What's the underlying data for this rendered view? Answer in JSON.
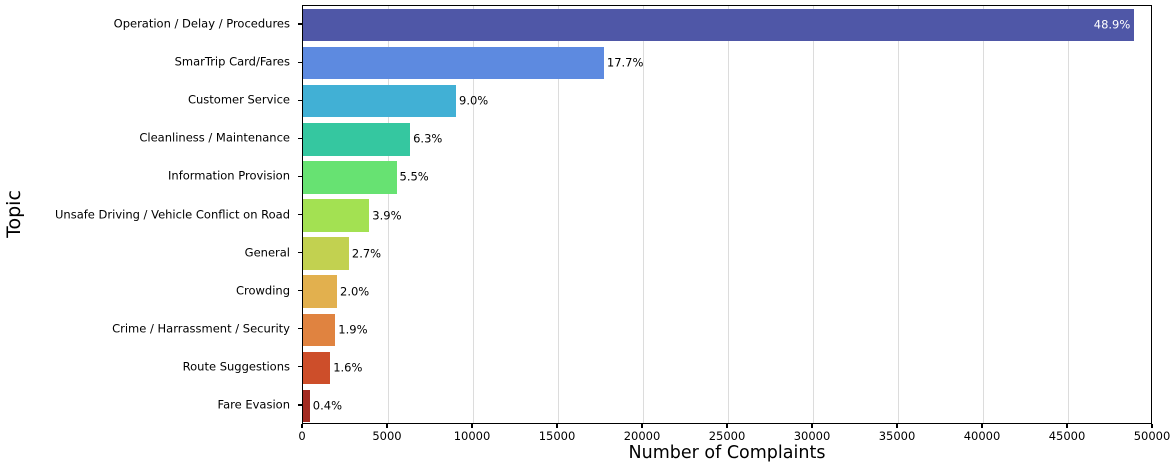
{
  "figure": {
    "background": "#ffffff",
    "spine_color": "#000000",
    "grid_color": "#dcdcdc",
    "text_color": "#000000"
  },
  "chart_data": {
    "type": "bar",
    "orientation": "horizontal",
    "title": "",
    "xlabel": "Number of Complaints",
    "ylabel": "Topic",
    "xlim": [
      0,
      50000
    ],
    "grid": "vertical",
    "legend": "none",
    "categories": [
      "Operation / Delay / Procedures",
      "SmarTrip Card/Fares",
      "Customer Service",
      "Cleanliness / Maintenance",
      "Information Provision",
      "Unsafe Driving / Vehicle Conflict on Road",
      "General",
      "Crowding",
      "Crime / Harrassment / Security",
      "Route Suggestions",
      "Fare Evasion"
    ],
    "values": [
      48900,
      17700,
      9000,
      6300,
      5500,
      3900,
      2700,
      2000,
      1900,
      1600,
      400
    ],
    "bar_labels": [
      "48.9%",
      "17.7%",
      "9.0%",
      "6.3%",
      "5.5%",
      "3.9%",
      "2.7%",
      "2.0%",
      "1.9%",
      "1.6%",
      "0.4%"
    ],
    "bar_colors": [
      "#4f57a7",
      "#5d8ae0",
      "#41b0d5",
      "#35c7a0",
      "#67e272",
      "#a3e152",
      "#c2d150",
      "#e2b04e",
      "#e08340",
      "#cd4e2a",
      "#a32c23"
    ],
    "xticks": [
      0,
      5000,
      10000,
      15000,
      20000,
      25000,
      30000,
      35000,
      40000,
      45000,
      50000
    ],
    "xtick_labels": [
      "0",
      "5000",
      "10000",
      "15000",
      "20000",
      "25000",
      "30000",
      "35000",
      "40000",
      "45000",
      "50000"
    ]
  }
}
